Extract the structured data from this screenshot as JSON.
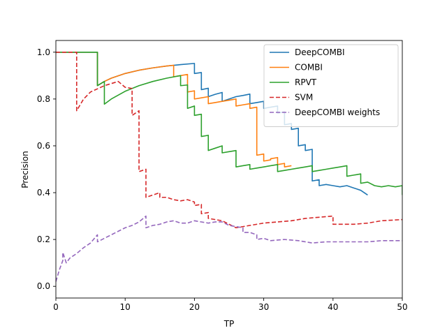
{
  "chart_data": {
    "type": "line",
    "xlabel": "TP",
    "ylabel": "Precision",
    "xlim": [
      0,
      50
    ],
    "ylim": [
      -0.05,
      1.05
    ],
    "xticks": [
      0,
      10,
      20,
      30,
      40,
      50
    ],
    "yticks": [
      0.0,
      0.2,
      0.4,
      0.6,
      0.8,
      1.0
    ],
    "xtick_labels": [
      "0",
      "10",
      "20",
      "30",
      "40",
      "50"
    ],
    "ytick_labels": [
      "0.0",
      "0.2",
      "0.4",
      "0.6",
      "0.8",
      "1.0"
    ],
    "grid": false,
    "legend_position": "top-right",
    "series": [
      {
        "name": "DeepCOMBI",
        "color": "#1f77b4",
        "dashed": false,
        "x": [
          0,
          6,
          6,
          7,
          8,
          10,
          12,
          14,
          16,
          18,
          20,
          20,
          21,
          21,
          22,
          22,
          23,
          24,
          24,
          25,
          26,
          27,
          28,
          28,
          29,
          30,
          30,
          31,
          32,
          32,
          33,
          33,
          34,
          34,
          35,
          35,
          36,
          36,
          37,
          37,
          38,
          38,
          39,
          40,
          41,
          42,
          43,
          44,
          45
        ],
        "y": [
          1.0,
          1.0,
          0.857,
          0.875,
          0.889,
          0.909,
          0.923,
          0.933,
          0.941,
          0.947,
          0.952,
          0.909,
          0.913,
          0.84,
          0.846,
          0.81,
          0.82,
          0.828,
          0.79,
          0.8,
          0.81,
          0.815,
          0.821,
          0.78,
          0.785,
          0.79,
          0.76,
          0.765,
          0.77,
          0.74,
          0.745,
          0.69,
          0.695,
          0.67,
          0.675,
          0.6,
          0.605,
          0.58,
          0.585,
          0.45,
          0.455,
          0.43,
          0.435,
          0.43,
          0.425,
          0.43,
          0.42,
          0.41,
          0.39
        ]
      },
      {
        "name": "COMBI",
        "color": "#ff7f0e",
        "dashed": false,
        "x": [
          0,
          6,
          6,
          7,
          8,
          10,
          12,
          14,
          16,
          17,
          17,
          18,
          19,
          19,
          20,
          20,
          21,
          22,
          22,
          23,
          24,
          25,
          26,
          26,
          27,
          28,
          28,
          29,
          29,
          30,
          30,
          31,
          31,
          32,
          32,
          33,
          33,
          34
        ],
        "y": [
          1.0,
          1.0,
          0.857,
          0.875,
          0.889,
          0.909,
          0.923,
          0.933,
          0.941,
          0.944,
          0.895,
          0.9,
          0.905,
          0.83,
          0.835,
          0.8,
          0.805,
          0.81,
          0.78,
          0.785,
          0.79,
          0.795,
          0.8,
          0.77,
          0.775,
          0.78,
          0.76,
          0.765,
          0.56,
          0.565,
          0.535,
          0.54,
          0.545,
          0.55,
          0.52,
          0.525,
          0.51,
          0.515
        ]
      },
      {
        "name": "RPVT",
        "color": "#2ca02c",
        "dashed": false,
        "x": [
          0,
          6,
          6,
          7,
          7,
          8,
          10,
          12,
          14,
          16,
          18,
          18,
          19,
          19,
          20,
          20,
          21,
          21,
          22,
          22,
          23,
          24,
          24,
          25,
          26,
          26,
          27,
          28,
          28,
          29,
          30,
          31,
          32,
          32,
          33,
          34,
          35,
          36,
          37,
          37,
          38,
          39,
          40,
          41,
          42,
          42,
          43,
          44,
          44,
          45,
          46,
          47,
          48,
          49,
          50,
          50
        ],
        "y": [
          1.0,
          1.0,
          0.857,
          0.875,
          0.778,
          0.8,
          0.833,
          0.857,
          0.875,
          0.889,
          0.9,
          0.857,
          0.86,
          0.76,
          0.77,
          0.73,
          0.735,
          0.64,
          0.645,
          0.58,
          0.59,
          0.6,
          0.57,
          0.575,
          0.58,
          0.51,
          0.515,
          0.52,
          0.5,
          0.505,
          0.51,
          0.515,
          0.52,
          0.49,
          0.495,
          0.5,
          0.505,
          0.51,
          0.515,
          0.49,
          0.495,
          0.5,
          0.505,
          0.51,
          0.515,
          0.47,
          0.475,
          0.48,
          0.44,
          0.445,
          0.43,
          0.425,
          0.43,
          0.425,
          0.43,
          0.39
        ]
      },
      {
        "name": "SVM",
        "color": "#d62728",
        "dashed": true,
        "x": [
          0,
          3,
          3,
          4,
          5,
          7,
          9,
          10,
          11,
          11,
          12,
          12,
          13,
          13,
          15,
          15,
          16,
          17,
          18,
          19,
          20,
          20,
          21,
          21,
          22,
          22,
          24,
          26,
          28,
          30,
          32,
          34,
          36,
          38,
          40,
          40,
          43,
          45,
          47,
          50
        ],
        "y": [
          1.0,
          1.0,
          0.75,
          0.8,
          0.83,
          0.857,
          0.875,
          0.85,
          0.845,
          0.73,
          0.75,
          0.49,
          0.5,
          0.38,
          0.4,
          0.38,
          0.38,
          0.37,
          0.365,
          0.37,
          0.36,
          0.345,
          0.35,
          0.31,
          0.315,
          0.29,
          0.28,
          0.25,
          0.26,
          0.27,
          0.275,
          0.28,
          0.29,
          0.295,
          0.3,
          0.265,
          0.265,
          0.27,
          0.28,
          0.285
        ]
      },
      {
        "name": "DeepCOMBI weights",
        "color": "#9467bd",
        "dashed": true,
        "x": [
          0,
          0.5,
          1,
          1,
          1.5,
          2,
          3,
          4,
          5,
          6,
          6,
          7,
          8,
          9,
          10,
          11,
          12,
          13,
          13,
          14,
          15,
          16,
          17,
          18,
          19,
          20,
          21,
          22,
          23,
          24,
          25,
          26,
          27,
          27,
          28,
          29,
          29,
          30,
          31,
          33,
          35,
          37,
          39,
          41,
          43,
          45,
          47,
          50
        ],
        "y": [
          0.02,
          0.07,
          0.11,
          0.145,
          0.1,
          0.12,
          0.14,
          0.165,
          0.185,
          0.22,
          0.19,
          0.205,
          0.22,
          0.235,
          0.25,
          0.26,
          0.275,
          0.3,
          0.25,
          0.26,
          0.265,
          0.275,
          0.28,
          0.27,
          0.27,
          0.28,
          0.275,
          0.27,
          0.275,
          0.275,
          0.26,
          0.255,
          0.25,
          0.23,
          0.23,
          0.22,
          0.2,
          0.205,
          0.195,
          0.2,
          0.195,
          0.185,
          0.19,
          0.19,
          0.19,
          0.19,
          0.195,
          0.195
        ]
      }
    ]
  }
}
